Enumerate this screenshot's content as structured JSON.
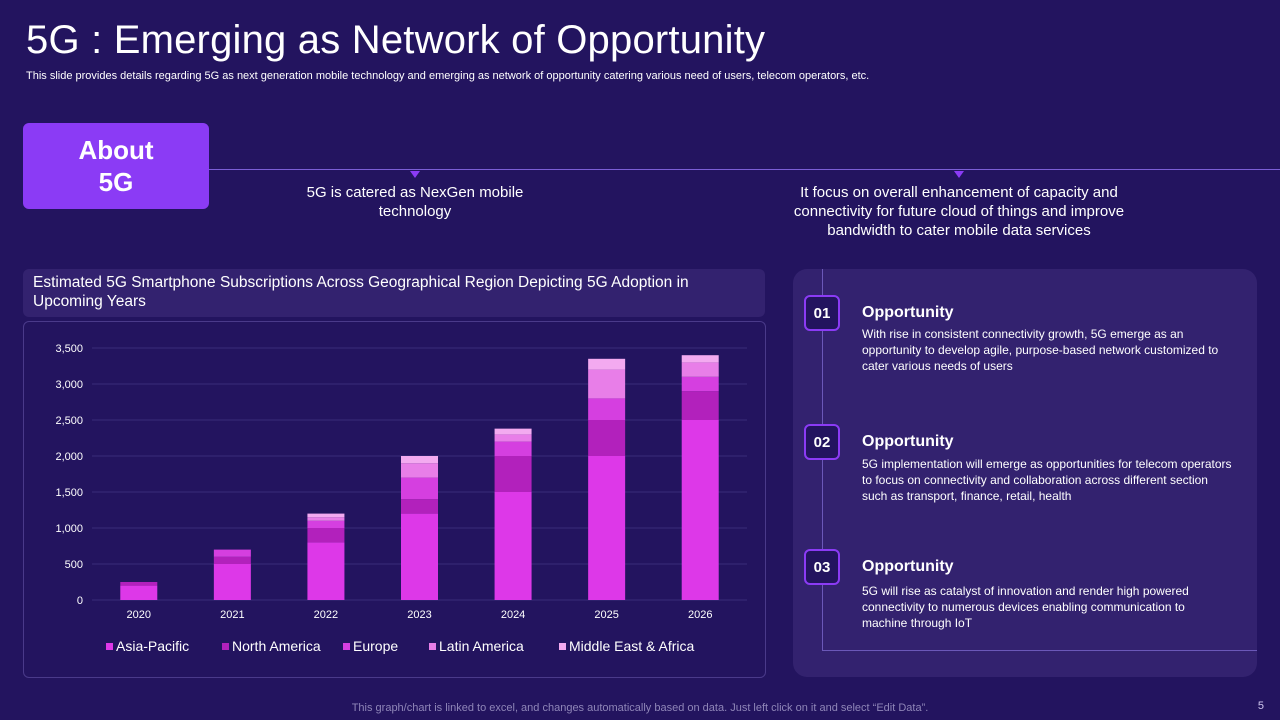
{
  "header": {
    "title": "5G : Emerging as Network of Opportunity",
    "subtitle": "This slide provides details regarding 5G as next generation mobile technology and emerging as network of opportunity catering various need of users, telecom operators, etc."
  },
  "about": {
    "label": "About 5G",
    "points": [
      "5G is catered as NexGen mobile technology",
      "It focus on overall enhancement of capacity and connectivity for future cloud of things and improve bandwidth to cater mobile data services"
    ]
  },
  "chart_header": "Estimated 5G Smartphone Subscriptions Across Geographical Region Depicting 5G Adoption in Upcoming Years",
  "chart_data": {
    "type": "bar",
    "stacked": true,
    "title": "Estimated 5G Smartphone Subscriptions Across Geographical Region Depicting 5G Adoption in Upcoming Years",
    "xlabel": "",
    "ylabel": "",
    "categories": [
      "2020",
      "2021",
      "2022",
      "2023",
      "2024",
      "2025",
      "2026"
    ],
    "ylim": [
      0,
      3500
    ],
    "yticks": [
      0,
      500,
      1000,
      1500,
      2000,
      2500,
      3000,
      3500
    ],
    "ytick_labels": [
      "0",
      "500",
      "1,000",
      "1,500",
      "2,000",
      "2,500",
      "3,000",
      "3,500"
    ],
    "legend_position": "bottom",
    "series": [
      {
        "name": "Asia-Pacific",
        "color": "#dd38e8",
        "values": [
          200,
          500,
          800,
          1200,
          1500,
          2000,
          2500
        ]
      },
      {
        "name": "North America",
        "color": "#b221bc",
        "values": [
          50,
          100,
          200,
          200,
          500,
          500,
          400
        ]
      },
      {
        "name": "Europe",
        "color": "#d53fe0",
        "values": [
          0,
          100,
          100,
          300,
          200,
          300,
          200
        ]
      },
      {
        "name": "Latin America",
        "color": "#e87ee8",
        "values": [
          0,
          0,
          50,
          200,
          100,
          400,
          200
        ]
      },
      {
        "name": "Middle East & Africa",
        "color": "#f3aaf0",
        "values": [
          0,
          0,
          50,
          100,
          80,
          150,
          100
        ]
      }
    ]
  },
  "opportunities": [
    {
      "num": "01",
      "title": "Opportunity",
      "text": "With rise in consistent connectivity growth, 5G emerge as an opportunity to develop agile, purpose-based network customized to cater various needs of users"
    },
    {
      "num": "02",
      "title": "Opportunity",
      "text": "5G implementation will emerge as opportunities for telecom operators to focus on connectivity and collaboration across different section such as transport, finance, retail, health"
    },
    {
      "num": "03",
      "title": "Opportunity",
      "text": "5G will rise as catalyst of innovation and render high powered connectivity to numerous devices enabling communication to machine through IoT"
    }
  ],
  "footer": "This graph/chart is linked to excel, and changes automatically based on data. Just left click on it and select “Edit Data”.",
  "page_number": "5",
  "colors": {
    "background": "#23145f",
    "accent": "#8b3bf5",
    "panel": "#33226f"
  }
}
